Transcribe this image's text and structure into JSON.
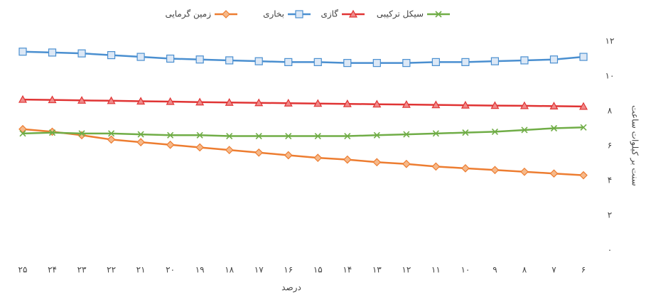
{
  "chart_data": {
    "type": "line",
    "x_label": "درصد",
    "y_label": "سنت بر کیلوات ساعت",
    "categories": [
      "۲۵",
      "۲۴",
      "۲۳",
      "۲۲",
      "۲۱",
      "۲۰",
      "۱۹",
      "۱۸",
      "۱۷",
      "۱۶",
      "۱۵",
      "۱۴",
      "۱۳",
      "۱۲",
      "۱۱",
      "۱۰",
      "۹",
      "۸",
      "۷",
      "۶"
    ],
    "series": [
      {
        "name": "زمین گرمایی",
        "color": "#ed7d31",
        "marker": "diamond",
        "values": [
          6.95,
          6.8,
          6.6,
          6.35,
          6.2,
          6.05,
          5.9,
          5.75,
          5.6,
          5.45,
          5.3,
          5.2,
          5.05,
          4.95,
          4.8,
          4.7,
          4.6,
          4.5,
          4.4,
          4.3
        ]
      },
      {
        "name": "بخاری",
        "color": "#4a8fd0",
        "marker": "square",
        "values": [
          11.4,
          11.35,
          11.3,
          11.2,
          11.1,
          11.0,
          10.95,
          10.9,
          10.85,
          10.8,
          10.8,
          10.75,
          10.75,
          10.75,
          10.8,
          10.8,
          10.85,
          10.9,
          10.95,
          11.1
        ]
      },
      {
        "name": "گازی",
        "color": "#e03434",
        "marker": "triangle",
        "values": [
          8.65,
          8.63,
          8.6,
          8.58,
          8.55,
          8.53,
          8.5,
          8.48,
          8.46,
          8.44,
          8.42,
          8.4,
          8.38,
          8.36,
          8.34,
          8.32,
          8.3,
          8.29,
          8.27,
          8.25
        ]
      },
      {
        "name": "سیکل ترکیبی",
        "color": "#70ad47",
        "marker": "x",
        "values": [
          6.7,
          6.75,
          6.7,
          6.7,
          6.65,
          6.6,
          6.6,
          6.55,
          6.55,
          6.55,
          6.55,
          6.55,
          6.6,
          6.65,
          6.7,
          6.75,
          6.8,
          6.9,
          7.0,
          7.05
        ]
      }
    ],
    "ylim": [
      0,
      12
    ],
    "yticks": [
      {
        "value": 0,
        "label": "۰"
      },
      {
        "value": 2,
        "label": "۲"
      },
      {
        "value": 4,
        "label": "۴"
      },
      {
        "value": 6,
        "label": "۶"
      },
      {
        "value": 8,
        "label": "۸"
      },
      {
        "value": 10,
        "label": "۱۰"
      },
      {
        "value": 12,
        "label": "۱۲"
      }
    ],
    "grid": false
  }
}
